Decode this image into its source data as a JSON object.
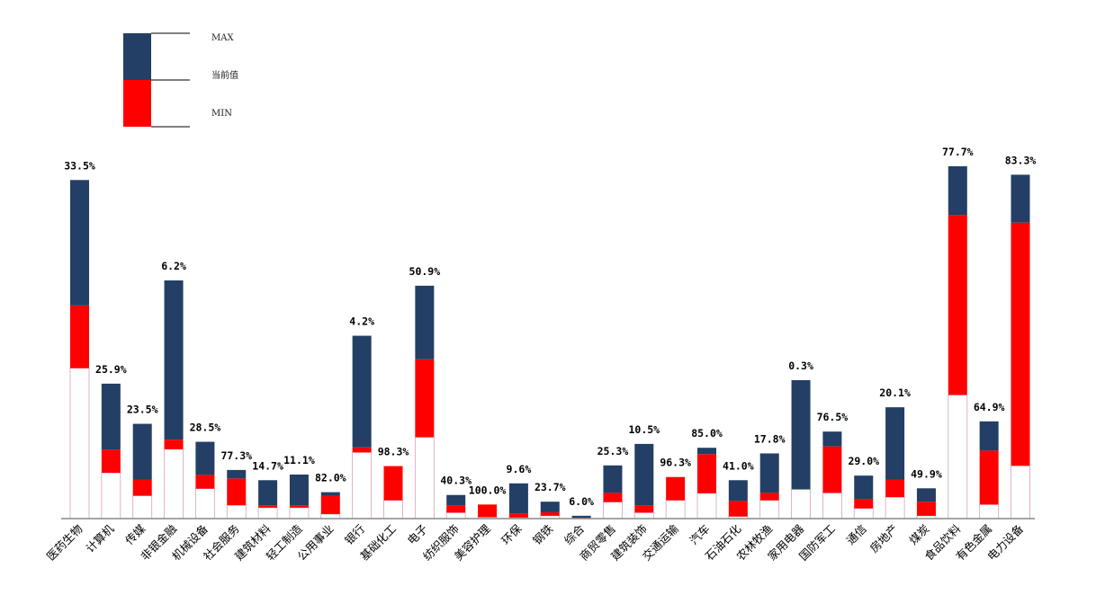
{
  "chart_data": {
    "type": "bar",
    "legend": {
      "placement": "top-left",
      "entries": [
        "MAX",
        "当前值",
        "MIN"
      ]
    },
    "colors": {
      "max": "#233F65",
      "current": "#FF0000",
      "min": "#FFFFFF",
      "min_border": "#D9A0B8",
      "axis": "#888888"
    },
    "ylim": [
      0,
      1
    ],
    "categories": [
      "医药生物",
      "计算机",
      "传媒",
      "非银金融",
      "机械设备",
      "社会服务",
      "建筑材料",
      "轻工制造",
      "公用事业",
      "银行",
      "基础化工",
      "电子",
      "纺织服饰",
      "美容护理",
      "环保",
      "钢铁",
      "综合",
      "商贸零售",
      "建筑装饰",
      "交通运输",
      "汽车",
      "石油石化",
      "农林牧渔",
      "家用电器",
      "国防军工",
      "通信",
      "房地产",
      "煤炭",
      "食品饮料",
      "有色金属",
      "电力设备"
    ],
    "series": [
      {
        "name": "MAX",
        "values": [
          0.961,
          0.383,
          0.269,
          0.676,
          0.218,
          0.138,
          0.109,
          0.125,
          0.075,
          0.519,
          0.149,
          0.661,
          0.067,
          0.04,
          0.1,
          0.048,
          0.008,
          0.151,
          0.212,
          0.118,
          0.201,
          0.109,
          0.185,
          0.393,
          0.247,
          0.122,
          0.316,
          0.086,
          1.0,
          0.276,
          0.976
        ]
      },
      {
        "name": "当前值",
        "values": [
          0.605,
          0.196,
          0.111,
          0.224,
          0.124,
          0.114,
          0.038,
          0.038,
          0.064,
          0.202,
          0.149,
          0.452,
          0.038,
          0.04,
          0.015,
          0.018,
          0.002,
          0.073,
          0.038,
          0.118,
          0.183,
          0.05,
          0.073,
          0.084,
          0.205,
          0.056,
          0.111,
          0.048,
          0.862,
          0.193,
          0.84
        ]
      },
      {
        "name": "MIN",
        "values": [
          0.427,
          0.13,
          0.065,
          0.197,
          0.085,
          0.038,
          0.031,
          0.031,
          0.013,
          0.188,
          0.052,
          0.231,
          0.017,
          0.004,
          0.003,
          0.008,
          0.001,
          0.047,
          0.017,
          0.052,
          0.072,
          0.006,
          0.052,
          0.083,
          0.073,
          0.029,
          0.061,
          0.008,
          0.351,
          0.04,
          0.15
        ]
      }
    ],
    "percent_labels": [
      "33.5%",
      "25.9%",
      "23.5%",
      "6.2%",
      "28.5%",
      "77.3%",
      "14.7%",
      "11.1%",
      "82.0%",
      "4.2%",
      "98.3%",
      "50.9%",
      "40.3%",
      "100.0%",
      "9.6%",
      "23.7%",
      "6.0%",
      "25.3%",
      "10.5%",
      "96.3%",
      "85.0%",
      "41.0%",
      "17.8%",
      "0.3%",
      "76.5%",
      "29.0%",
      "20.1%",
      "49.9%",
      "77.7%",
      "64.9%",
      "83.3%"
    ]
  }
}
